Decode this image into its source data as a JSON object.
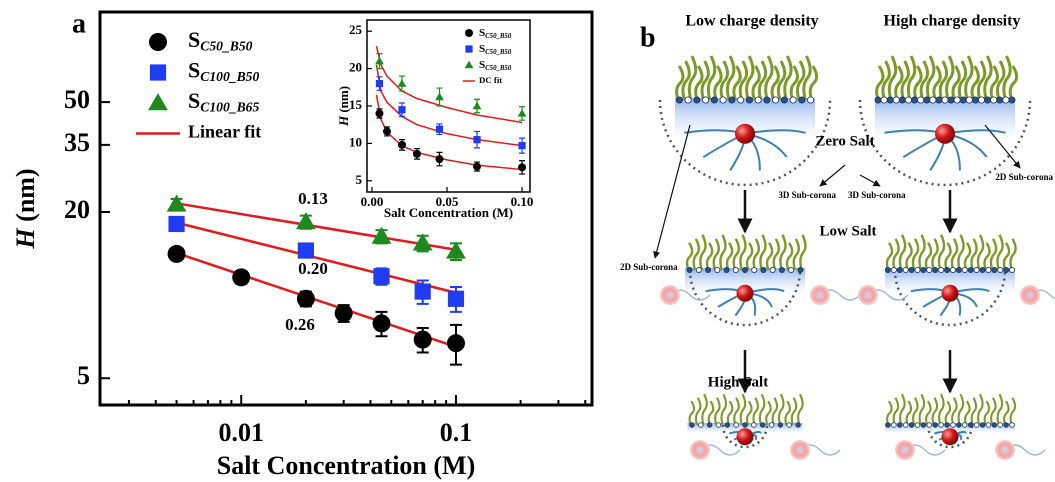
{
  "chart_data": [
    {
      "type": "scatter",
      "log_x": true,
      "log_y": true,
      "xlim": [
        0.0022,
        0.43
      ],
      "ylim": [
        4,
        106
      ],
      "xticks": [
        0.01,
        0.1
      ],
      "xminorticks": [
        0.003,
        0.004,
        0.005,
        0.006,
        0.007,
        0.008,
        0.009,
        0.02,
        0.03,
        0.04,
        0.05,
        0.06,
        0.07,
        0.08,
        0.09,
        0.2,
        0.3,
        0.4
      ],
      "yticks": [
        5,
        20,
        35,
        50
      ],
      "xlabel": "Salt Concentration (M)",
      "ylabel_symbol": "H",
      "ylabel_unit": "(nm)",
      "series": [
        {
          "name": "S",
          "subscript": "C50_B50",
          "color": "#000000",
          "marker": "circle",
          "x": [
            0.005,
            0.01,
            0.02,
            0.03,
            0.045,
            0.07,
            0.1
          ],
          "values": [
            14.1,
            11.6,
            9.7,
            8.6,
            7.9,
            6.9,
            6.7
          ],
          "errors": [
            0.5,
            0.6,
            0.6,
            0.6,
            0.8,
            0.7,
            1.1
          ]
        },
        {
          "name": "S",
          "subscript": "C100_B50",
          "color": "#1f3cf0",
          "marker": "square",
          "x": [
            0.005,
            0.02,
            0.045,
            0.07,
            0.1
          ],
          "values": [
            18.1,
            14.5,
            11.7,
            10.3,
            9.7
          ],
          "errors": [
            0.8,
            0.8,
            0.8,
            1.0,
            1.0
          ]
        },
        {
          "name": "S",
          "subscript": "C100_B65",
          "color": "#1e8a1e",
          "marker": "triangle",
          "x": [
            0.005,
            0.02,
            0.045,
            0.07,
            0.1
          ],
          "values": [
            21.3,
            18.4,
            16.3,
            15.4,
            14.4
          ],
          "errors": [
            1.0,
            1.0,
            0.9,
            1.0,
            1.0
          ]
        }
      ],
      "fit_name": "Linear fit",
      "fits": [
        {
          "color": "#e31a1c",
          "x": [
            0.005,
            0.1
          ],
          "values": [
            14.2,
            6.5
          ]
        },
        {
          "color": "#e31a1c",
          "x": [
            0.005,
            0.1
          ],
          "values": [
            18.3,
            10.2
          ]
        },
        {
          "color": "#e31a1c",
          "x": [
            0.005,
            0.1
          ],
          "values": [
            21.5,
            14.6
          ]
        }
      ],
      "annotations": [
        "0.13",
        "0.20",
        "0.26"
      ]
    },
    {
      "type": "scatter",
      "log_x": false,
      "log_y": false,
      "xlim": [
        -0.0033,
        0.1053
      ],
      "ylim": [
        3.5,
        26.5
      ],
      "xticks": [
        {
          "value": 0,
          "label": "0.00"
        },
        {
          "value": 0.05,
          "label": "0.05"
        },
        {
          "value": 0.1,
          "label": "0.10"
        }
      ],
      "yticks": [
        5,
        10,
        15,
        20,
        25
      ],
      "xlabel": "Salt Concentration (M)",
      "ylabel_symbol": "H",
      "ylabel_unit": "(nm)",
      "series": [
        {
          "name": "S",
          "subscript": "C50_B50",
          "color": "#000000",
          "marker": "circle",
          "x": [
            0.005,
            0.01,
            0.02,
            0.03,
            0.045,
            0.07,
            0.1
          ],
          "values": [
            14,
            11.6,
            9.8,
            8.6,
            7.9,
            6.9,
            6.8
          ],
          "errors": [
            0.6,
            0.6,
            0.7,
            0.7,
            0.9,
            0.6,
            0.9
          ]
        },
        {
          "name": "S",
          "subscript": "C50_B50",
          "color": "#1f3cf0",
          "marker": "square",
          "x": [
            0.005,
            0.02,
            0.045,
            0.07,
            0.1
          ],
          "values": [
            18,
            14.5,
            11.9,
            10.5,
            9.7
          ],
          "errors": [
            0.9,
            0.9,
            0.7,
            1.1,
            1.0
          ]
        },
        {
          "name": "S",
          "subscript": "C50_B50",
          "color": "#1e8a1e",
          "marker": "triangle",
          "x": [
            0.005,
            0.02,
            0.045,
            0.07,
            0.1
          ],
          "values": [
            21,
            18,
            16.2,
            15,
            14
          ],
          "errors": [
            1.0,
            1.0,
            1.2,
            0.9,
            0.9
          ]
        }
      ],
      "fit_name": "DC fit",
      "fits": [
        {
          "color": "#e31a1c",
          "x": [
            0.003,
            0.006,
            0.01,
            0.02,
            0.03,
            0.05,
            0.07,
            0.1
          ],
          "values": [
            16.5,
            13.2,
            11.5,
            9.7,
            8.8,
            7.8,
            7.1,
            6.5
          ]
        },
        {
          "color": "#e31a1c",
          "x": [
            0.003,
            0.006,
            0.01,
            0.02,
            0.03,
            0.05,
            0.07,
            0.1
          ],
          "values": [
            20.5,
            17,
            15.5,
            13.6,
            12.5,
            11.3,
            10.5,
            9.7
          ]
        },
        {
          "color": "#e31a1c",
          "x": [
            0.003,
            0.006,
            0.01,
            0.02,
            0.03,
            0.05,
            0.07,
            0.1
          ],
          "values": [
            23,
            20.5,
            19,
            17,
            16,
            14.8,
            13.8,
            12.8
          ]
        }
      ]
    }
  ],
  "panel_labels": [
    "a",
    "b"
  ],
  "diagram": {
    "columns": [
      "Low charge density",
      "High charge density"
    ],
    "rows": [
      "Zero Salt",
      "Low  Salt",
      "High  Salt"
    ],
    "callouts": [
      "2D Sub-corona",
      "3D Sub-corona",
      "3D Sub-corona",
      "2D Sub-corona"
    ]
  }
}
